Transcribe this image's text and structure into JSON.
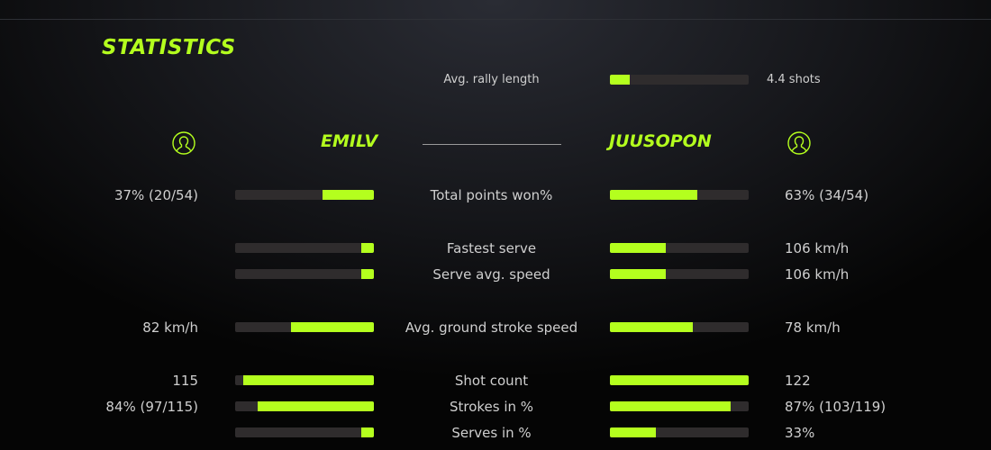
{
  "title": "STATISTICS",
  "accent": "#b4ff1e",
  "rally": {
    "label": "Avg. rally length",
    "value": "4.4 shots",
    "fill": 0.14
  },
  "players": {
    "left": {
      "name": "EMILV",
      "icon": "user-circle-icon"
    },
    "right": {
      "name": "JUUSOPON",
      "icon": "user-circle-icon"
    }
  },
  "stats": [
    {
      "label": "Total points won%",
      "left": "37% (20/54)",
      "right": "63% (34/54)",
      "left_fill": 0.37,
      "right_fill": 0.63
    },
    {
      "label": "Fastest serve",
      "left": "",
      "right": "106 km/h",
      "left_fill": 0.09,
      "right_fill": 0.4
    },
    {
      "label": "Serve avg. speed",
      "left": "",
      "right": "106 km/h",
      "left_fill": 0.09,
      "right_fill": 0.4
    },
    {
      "label": "Avg. ground stroke speed",
      "left": "82 km/h",
      "right": "78 km/h",
      "left_fill": 0.6,
      "right_fill": 0.6
    },
    {
      "label": "Shot count",
      "left": "115",
      "right": "122",
      "left_fill": 0.94,
      "right_fill": 1.0
    },
    {
      "label": "Strokes in %",
      "left": "84% (97/115)",
      "right": "87% (103/119)",
      "left_fill": 0.84,
      "right_fill": 0.87
    },
    {
      "label": "Serves in %",
      "left": "",
      "right": "33%",
      "left_fill": 0.09,
      "right_fill": 0.33
    }
  ]
}
